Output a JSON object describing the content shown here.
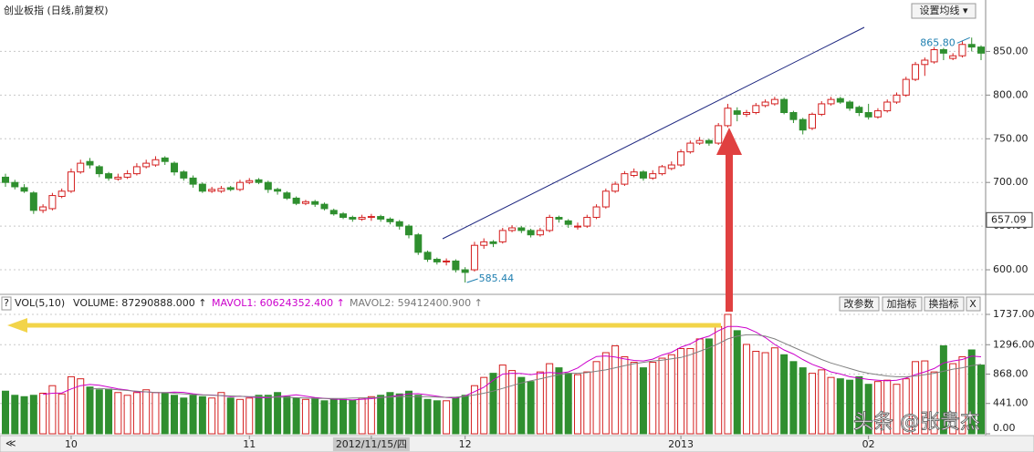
{
  "header": {
    "title": "创业板指 (日线,前复权)",
    "ma_button": "设置均线 ▾"
  },
  "volume_header": {
    "help": "?",
    "name": "VOL(5,10)",
    "volume": "VOLUME: 87290888.000 ↑",
    "mavol1": "MAVOL1: 60624352.400 ↑",
    "mavol2": "MAVOL2: 59412400.900 ↑",
    "buttons": [
      "改参数",
      "加指标",
      "换指标",
      "X"
    ]
  },
  "watermark": "头条 @张贵杰",
  "chart_data": [
    {
      "type": "candlestick",
      "categories": [
        null,
        null,
        null,
        null,
        null,
        null,
        null,
        "10",
        null,
        null,
        null,
        null,
        null,
        null,
        null,
        null,
        null,
        null,
        null,
        null,
        null,
        null,
        null,
        null,
        null,
        null,
        "11",
        null,
        null,
        null,
        null,
        null,
        null,
        null,
        null,
        null,
        null,
        null,
        null,
        "2012/11/15/四",
        null,
        null,
        null,
        null,
        null,
        null,
        null,
        null,
        null,
        "12",
        null,
        null,
        null,
        null,
        null,
        null,
        null,
        null,
        null,
        null,
        null,
        null,
        null,
        null,
        null,
        null,
        null,
        null,
        null,
        null,
        null,
        null,
        "2013",
        null,
        null,
        null,
        null,
        null,
        null,
        null,
        null,
        null,
        null,
        null,
        null,
        null,
        null,
        null,
        null,
        null,
        null,
        null,
        "02",
        null,
        null,
        null,
        null,
        null,
        null,
        null,
        null,
        null,
        null,
        null,
        null
      ],
      "candles": [
        [
          706,
          710,
          695,
          700
        ],
        [
          700,
          703,
          692,
          695
        ],
        [
          694,
          698,
          688,
          690
        ],
        [
          688,
          690,
          664,
          668
        ],
        [
          668,
          675,
          665,
          672
        ],
        [
          670,
          688,
          668,
          685
        ],
        [
          684,
          693,
          682,
          690
        ],
        [
          690,
          716,
          688,
          712
        ],
        [
          712,
          726,
          710,
          722
        ],
        [
          724,
          728,
          716,
          720
        ],
        [
          718,
          720,
          706,
          710
        ],
        [
          710,
          712,
          702,
          705
        ],
        [
          704,
          710,
          702,
          706
        ],
        [
          706,
          714,
          704,
          710
        ],
        [
          710,
          722,
          708,
          718
        ],
        [
          718,
          726,
          716,
          722
        ],
        [
          720,
          730,
          718,
          726
        ],
        [
          728,
          730,
          720,
          724
        ],
        [
          722,
          724,
          708,
          712
        ],
        [
          712,
          714,
          702,
          705
        ],
        [
          705,
          708,
          694,
          698
        ],
        [
          698,
          700,
          688,
          690
        ],
        [
          690,
          695,
          688,
          692
        ],
        [
          690,
          696,
          688,
          693
        ],
        [
          694,
          696,
          690,
          692
        ],
        [
          692,
          703,
          690,
          700
        ],
        [
          700,
          705,
          698,
          702
        ],
        [
          703,
          705,
          698,
          700
        ],
        [
          700,
          702,
          688,
          692
        ],
        [
          692,
          694,
          686,
          690
        ],
        [
          688,
          690,
          680,
          682
        ],
        [
          682,
          684,
          674,
          676
        ],
        [
          676,
          680,
          674,
          678
        ],
        [
          678,
          680,
          672,
          675
        ],
        [
          675,
          677,
          668,
          670
        ],
        [
          668,
          670,
          662,
          664
        ],
        [
          664,
          666,
          658,
          660
        ],
        [
          660,
          662,
          655,
          658
        ],
        [
          658,
          663,
          656,
          660
        ],
        [
          660,
          664,
          656,
          661
        ],
        [
          661,
          663,
          655,
          658
        ],
        [
          658,
          660,
          652,
          655
        ],
        [
          655,
          657,
          646,
          650
        ],
        [
          650,
          652,
          636,
          640
        ],
        [
          640,
          642,
          617,
          620
        ],
        [
          620,
          622,
          609,
          612
        ],
        [
          612,
          614,
          606,
          609
        ],
        [
          609,
          613,
          605,
          610
        ],
        [
          610,
          612,
          597,
          600
        ],
        [
          600,
          603,
          585.44,
          597
        ],
        [
          600,
          632,
          598,
          628
        ],
        [
          628,
          636,
          624,
          632
        ],
        [
          632,
          634,
          626,
          630
        ],
        [
          632,
          648,
          630,
          645
        ],
        [
          645,
          651,
          643,
          648
        ],
        [
          648,
          650,
          642,
          645
        ],
        [
          645,
          647,
          637,
          640
        ],
        [
          640,
          648,
          638,
          645
        ],
        [
          645,
          663,
          643,
          660
        ],
        [
          660,
          662,
          654,
          658
        ],
        [
          656,
          658,
          648,
          652
        ],
        [
          650,
          654,
          646,
          650
        ],
        [
          650,
          663,
          648,
          660
        ],
        [
          660,
          675,
          658,
          672
        ],
        [
          672,
          693,
          670,
          690
        ],
        [
          690,
          701,
          688,
          698
        ],
        [
          698,
          713,
          696,
          710
        ],
        [
          708,
          716,
          706,
          712
        ],
        [
          712,
          714,
          702,
          705
        ],
        [
          705,
          714,
          703,
          710
        ],
        [
          710,
          720,
          708,
          718
        ],
        [
          716,
          724,
          714,
          720
        ],
        [
          720,
          738,
          718,
          735
        ],
        [
          735,
          748,
          733,
          745
        ],
        [
          745,
          752,
          743,
          748
        ],
        [
          748,
          750,
          742,
          745
        ],
        [
          745,
          768,
          743,
          765
        ],
        [
          765,
          790,
          763,
          785
        ],
        [
          782,
          786,
          770,
          778
        ],
        [
          778,
          783,
          775,
          780
        ],
        [
          780,
          791,
          778,
          788
        ],
        [
          788,
          795,
          786,
          792
        ],
        [
          790,
          798,
          788,
          795
        ],
        [
          795,
          797,
          778,
          780
        ],
        [
          780,
          782,
          768,
          772
        ],
        [
          772,
          774,
          755,
          760
        ],
        [
          762,
          780,
          760,
          778
        ],
        [
          778,
          793,
          776,
          790
        ],
        [
          790,
          798,
          788,
          795
        ],
        [
          796,
          798,
          790,
          792
        ],
        [
          792,
          794,
          782,
          785
        ],
        [
          786,
          788,
          776,
          780
        ],
        [
          780,
          790,
          772,
          775
        ],
        [
          775,
          785,
          773,
          782
        ],
        [
          782,
          795,
          780,
          792
        ],
        [
          792,
          803,
          790,
          800
        ],
        [
          800,
          821,
          798,
          818
        ],
        [
          818,
          838,
          816,
          835
        ],
        [
          835,
          843,
          822,
          840
        ],
        [
          838,
          855,
          836,
          852
        ],
        [
          852,
          854,
          840,
          848
        ],
        [
          842,
          848,
          840,
          845
        ],
        [
          845,
          862,
          843,
          858
        ],
        [
          858,
          865.8,
          850,
          855
        ],
        [
          855,
          857,
          840,
          848
        ]
      ],
      "up_color": "#d42020",
      "down_color": "#2f8f2f",
      "ylim": [
        575,
        888
      ],
      "yticks": [
        {
          "value": 600,
          "label": "600.00"
        },
        {
          "value": 650,
          "label": "650.00"
        },
        {
          "value": 700,
          "label": "700.00"
        },
        {
          "value": 750,
          "label": "750.00"
        },
        {
          "value": 800,
          "label": "800.00"
        },
        {
          "value": 850,
          "label": "850.00"
        }
      ],
      "grid": true,
      "current_price": {
        "value": 657.09,
        "label": "657.09"
      },
      "annotations": [
        {
          "value": 865.8,
          "label": "865.80"
        },
        {
          "value": 585.44,
          "label": "585.44"
        }
      ]
    },
    {
      "type": "bar",
      "values": [
        620,
        560,
        540,
        560,
        590,
        700,
        580,
        830,
        800,
        680,
        640,
        650,
        600,
        560,
        600,
        640,
        600,
        590,
        560,
        520,
        560,
        540,
        520,
        600,
        520,
        500,
        520,
        560,
        560,
        600,
        540,
        520,
        500,
        520,
        480,
        500,
        500,
        490,
        520,
        540,
        560,
        600,
        580,
        620,
        560,
        500,
        480,
        480,
        520,
        560,
        700,
        820,
        880,
        1000,
        920,
        820,
        760,
        900,
        1020,
        960,
        880,
        860,
        900,
        1050,
        1180,
        1280,
        1120,
        1040,
        960,
        1040,
        1100,
        1150,
        1240,
        1240,
        1380,
        1380,
        1560,
        1737,
        1500,
        1300,
        1200,
        1180,
        1250,
        1150,
        1050,
        960,
        880,
        930,
        820,
        800,
        780,
        830,
        720,
        760,
        780,
        720,
        800,
        1050,
        1060,
        900,
        1280,
        1020,
        1120,
        1220,
        1000
      ],
      "series": [
        {
          "color": "#cc00cc",
          "values": [
            null,
            null,
            null,
            null,
            574,
            590,
            594,
            652,
            700,
            718,
            706,
            680,
            654,
            636,
            610,
            610,
            600,
            598,
            606,
            602,
            582,
            566,
            564,
            556,
            540,
            548,
            536,
            528,
            524,
            540,
            552,
            566,
            548,
            528,
            516,
            504,
            498,
            492,
            502,
            510,
            526,
            540,
            560,
            580,
            584,
            568,
            548,
            528,
            520,
            552,
            612,
            676,
            780,
            868,
            880,
            876,
            860,
            880,
            892,
            882,
            900,
            958,
            1050,
            1124,
            1132,
            1116,
            1088,
            1068,
            1060,
            1086,
            1146,
            1186,
            1260,
            1308,
            1380,
            1420,
            1500,
            1560,
            1560,
            1540,
            1480,
            1400,
            1300,
            1220,
            1160,
            1080,
            1010,
            960,
            900,
            870,
            830,
            810,
            790,
            780,
            770,
            780,
            810,
            860,
            900,
            950,
            1030,
            1060,
            1080,
            1130,
            1120
          ]
        },
        {
          "color": "#808080",
          "values": [
            null,
            null,
            null,
            null,
            null,
            null,
            null,
            null,
            null,
            650,
            660,
            650,
            640,
            630,
            620,
            610,
            600,
            600,
            590,
            580,
            570,
            565,
            560,
            555,
            550,
            545,
            540,
            540,
            535,
            535,
            530,
            525,
            520,
            515,
            515,
            515,
            515,
            520,
            520,
            525,
            530,
            535,
            540,
            540,
            540,
            540,
            535,
            530,
            535,
            545,
            565,
            590,
            620,
            660,
            700,
            740,
            770,
            800,
            830,
            860,
            880,
            880,
            890,
            910,
            930,
            960,
            990,
            1020,
            1040,
            1060,
            1070,
            1090,
            1110,
            1150,
            1200,
            1250,
            1310,
            1380,
            1420,
            1440,
            1440,
            1420,
            1380,
            1320,
            1260,
            1200,
            1140,
            1080,
            1030,
            990,
            950,
            910,
            880,
            860,
            840,
            830,
            830,
            840,
            860,
            880,
            910,
            940,
            960,
            990,
            1010
          ]
        }
      ],
      "ylim": [
        0,
        1737
      ],
      "yticks": [
        {
          "value": 1737,
          "label": "1737.00"
        },
        {
          "value": 1296,
          "label": "1296.00"
        },
        {
          "value": 868,
          "label": "868.00"
        },
        {
          "value": 441,
          "label": "441.00"
        },
        {
          "value": 0,
          "label": "0.00"
        }
      ],
      "grid": true
    }
  ]
}
